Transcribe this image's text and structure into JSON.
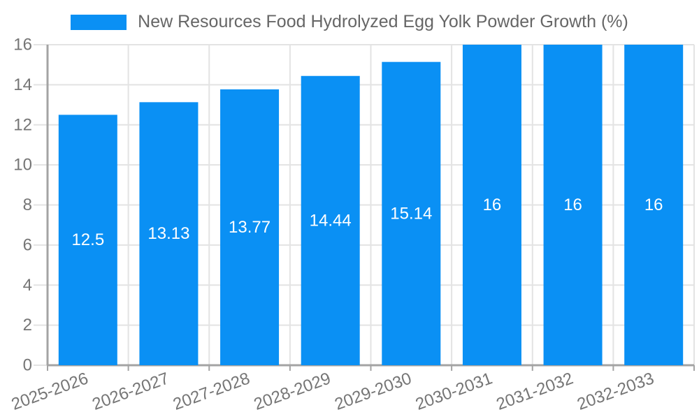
{
  "chart_data": {
    "type": "bar",
    "title": "New Resources Food Hydrolyzed Egg Yolk Powder Growth (%)",
    "legend": {
      "position": "top",
      "label": "New Resources Food Hydrolyzed Egg Yolk Powder Growth (%)"
    },
    "categories": [
      "2025-2026",
      "2026-2027",
      "2027-2028",
      "2028-2029",
      "2029-2030",
      "2030-2031",
      "2031-2032",
      "2032-2033"
    ],
    "values": [
      12.5,
      13.13,
      13.77,
      14.44,
      15.14,
      16,
      16,
      16
    ],
    "value_labels": [
      "12.5",
      "13.13",
      "13.77",
      "14.44",
      "15.14",
      "16",
      "16",
      "16"
    ],
    "xlabel": "",
    "ylabel": "",
    "ylim": [
      0,
      16
    ],
    "yticks": [
      0,
      2,
      4,
      6,
      8,
      10,
      12,
      14,
      16
    ],
    "grid": true,
    "x_tick_rotation_deg": -20,
    "colors": {
      "bar": "#0a90f4",
      "bar_label": "#ffffff",
      "axis_text": "#757575",
      "legend_text": "#666666",
      "grid": "#e3e3e3",
      "axis_line": "#a3a3a3"
    }
  }
}
